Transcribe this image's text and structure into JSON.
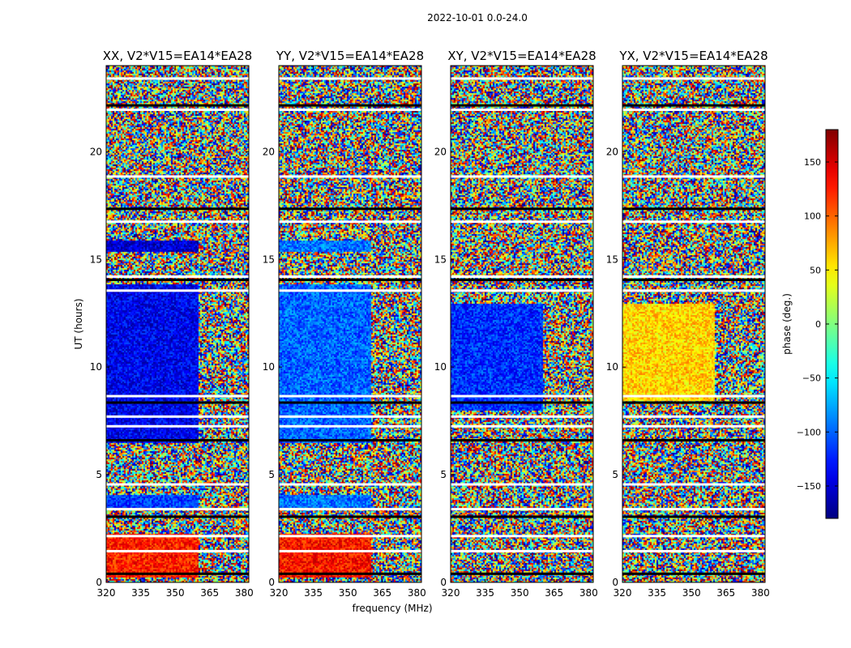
{
  "chart_data": {
    "type": "heatmap",
    "title": "2022-10-01 0.0-24.0",
    "xlabel": "frequency (MHz)",
    "ylabel": "UT (hours)",
    "xlim": [
      320,
      382
    ],
    "ylim": [
      0,
      24
    ],
    "x_ticks": [
      320,
      335,
      350,
      365,
      380
    ],
    "y_ticks": [
      0,
      5,
      10,
      15,
      20
    ],
    "panels": [
      {
        "title": "XX, V2*V15=EA14*EA28",
        "regions": [
          {
            "t_start": 0.3,
            "t_end": 2.3,
            "f_end": 360,
            "phase": 125
          },
          {
            "t_start": 3.5,
            "t_end": 4.1,
            "f_end": 360,
            "phase": -115
          },
          {
            "t_start": 6.5,
            "t_end": 13.9,
            "f_end": 360,
            "phase": -140
          },
          {
            "t_start": 15.4,
            "t_end": 15.9,
            "f_end": 360,
            "phase": -150
          }
        ]
      },
      {
        "title": "YY, V2*V15=EA14*EA28",
        "regions": [
          {
            "t_start": 0.3,
            "t_end": 2.3,
            "f_end": 360,
            "phase": 130
          },
          {
            "t_start": 3.5,
            "t_end": 4.1,
            "f_end": 360,
            "phase": -95
          },
          {
            "t_start": 6.5,
            "t_end": 13.9,
            "f_end": 360,
            "phase": -100
          },
          {
            "t_start": 15.4,
            "t_end": 15.9,
            "f_end": 360,
            "phase": -95
          }
        ]
      },
      {
        "title": "XY, V2*V15=EA14*EA28",
        "regions": [
          {
            "t_start": 8.0,
            "t_end": 13.0,
            "f_end": 360,
            "phase": -120
          }
        ]
      },
      {
        "title": "YX, V2*V15=EA14*EA28",
        "regions": [
          {
            "t_start": 8.5,
            "t_end": 13.0,
            "f_end": 360,
            "phase": 60
          }
        ]
      }
    ],
    "gaps_hours": [
      0.4,
      1.45,
      2.15,
      3.05,
      3.4,
      4.55,
      6.6,
      7.25,
      7.7,
      8.35,
      8.65,
      13.55,
      14.05,
      14.2,
      16.75,
      17.35,
      18.85,
      21.95,
      22.15,
      23.4
    ],
    "colorbar": {
      "label": "phase (deg.)",
      "min": -180,
      "max": 180,
      "ticks": [
        -150,
        -100,
        -50,
        0,
        50,
        100,
        150
      ],
      "tick_labels": [
        "−150",
        "−100",
        "−50",
        "0",
        "50",
        "100",
        "150"
      ],
      "colormap": "jet"
    }
  }
}
